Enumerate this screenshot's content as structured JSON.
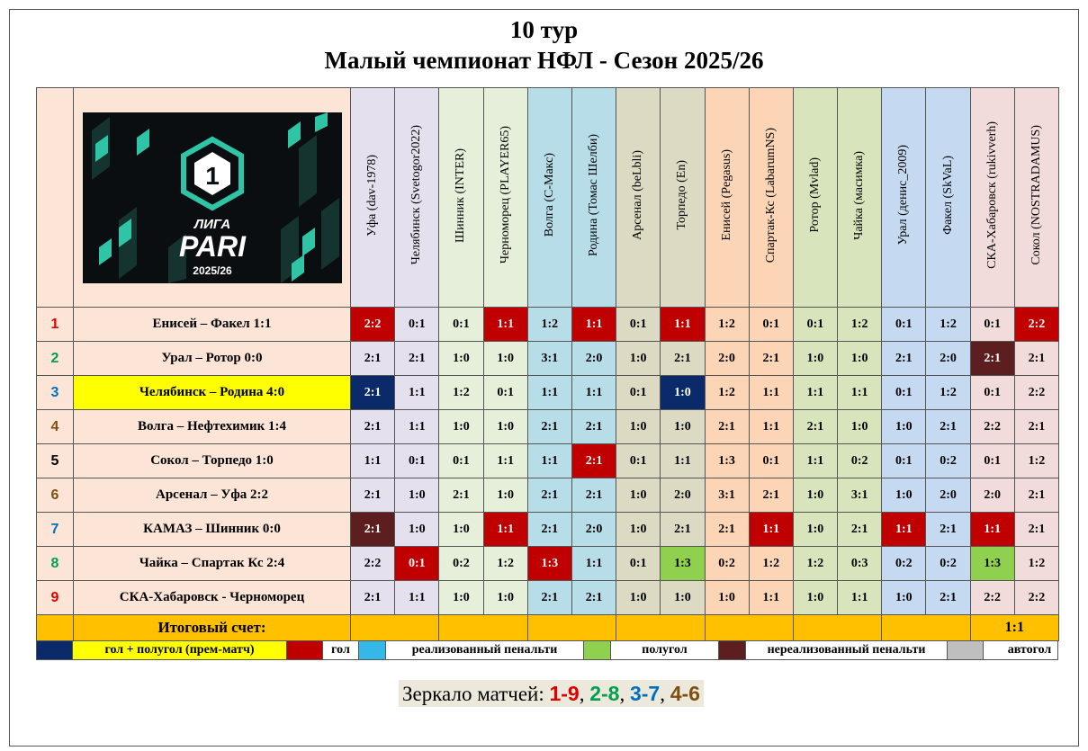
{
  "title": {
    "line1": "10 тур",
    "line2": "Малый чемпионат НФЛ - Сезон 2025/26"
  },
  "logo": {
    "line1": "ЛИГА",
    "line2": "PARI",
    "line3": "2025/26",
    "badge": "1"
  },
  "colors": {
    "num_red": "#e00000",
    "num_green": "#00a050",
    "num_blue": "#0070c0",
    "num_brown": "#7f4f10",
    "premium": "#0a2a6a",
    "goal": "#c00000",
    "penalty": "#33b8e8",
    "halfgoal": "#8fd14f",
    "missed_penalty": "#5c1e1e",
    "own_goal": "#bfbfbf",
    "total_row": "#ffc000",
    "highlight_match": "#ffff00"
  },
  "players": [
    {
      "name": "Уфа (dav-1978)",
      "bg": "#e5e0ee"
    },
    {
      "name": "Челябинск (Svetogor2022)",
      "bg": "#e5e0ee"
    },
    {
      "name": "Шинник (INTER)",
      "bg": "#e6efd9"
    },
    {
      "name": "Черноморец (PLAYER65)",
      "bg": "#e6efd9"
    },
    {
      "name": "Волга (С-Макс)",
      "bg": "#b7dde8"
    },
    {
      "name": "Родина (Томас Шелби)",
      "bg": "#b7dde8"
    },
    {
      "name": "Арсенал (beLbli)",
      "bg": "#dddac4"
    },
    {
      "name": "Торпедо (En)",
      "bg": "#dddac4"
    },
    {
      "name": "Енисей (Pegasus)",
      "bg": "#fbd5b5"
    },
    {
      "name": "Спартак-Кс (LabarumNS)",
      "bg": "#fbd5b5"
    },
    {
      "name": "Ротор (Mvlad)",
      "bg": "#d8e4bc"
    },
    {
      "name": "Чайка (масимка)",
      "bg": "#d8e4bc"
    },
    {
      "name": "Урал (денис_2009)",
      "bg": "#c5d9f1"
    },
    {
      "name": "Факел (SkVaL)",
      "bg": "#c5d9f1"
    },
    {
      "name": "СКА-Хабаровск (rukivverh)",
      "bg": "#f2dcdb"
    },
    {
      "name": "Сокол (NOSTRADAMUS)",
      "bg": "#f2dcdb"
    }
  ],
  "matches": [
    {
      "num": "1",
      "num_color": "red",
      "title": "Енисей – Факел  1:1",
      "highlight": false,
      "cells": [
        [
          "2:2",
          "goal"
        ],
        [
          "0:1",
          ""
        ],
        [
          "0:1",
          ""
        ],
        [
          "1:1",
          "goal"
        ],
        [
          "1:2",
          ""
        ],
        [
          "1:1",
          "goal"
        ],
        [
          "0:1",
          ""
        ],
        [
          "1:1",
          "goal"
        ],
        [
          "1:2",
          ""
        ],
        [
          "0:1",
          ""
        ],
        [
          "0:1",
          ""
        ],
        [
          "1:2",
          ""
        ],
        [
          "0:1",
          ""
        ],
        [
          "1:2",
          ""
        ],
        [
          "0:1",
          ""
        ],
        [
          "2:2",
          "goal"
        ]
      ]
    },
    {
      "num": "2",
      "num_color": "green",
      "title": "Урал – Ротор  0:0",
      "highlight": false,
      "cells": [
        [
          "2:1",
          ""
        ],
        [
          "2:1",
          ""
        ],
        [
          "1:0",
          ""
        ],
        [
          "1:0",
          ""
        ],
        [
          "3:1",
          ""
        ],
        [
          "2:0",
          ""
        ],
        [
          "1:0",
          ""
        ],
        [
          "2:1",
          ""
        ],
        [
          "2:0",
          ""
        ],
        [
          "2:1",
          ""
        ],
        [
          "1:0",
          ""
        ],
        [
          "1:0",
          ""
        ],
        [
          "2:1",
          ""
        ],
        [
          "2:0",
          ""
        ],
        [
          "2:1",
          "missed_penalty"
        ],
        [
          "2:1",
          ""
        ]
      ]
    },
    {
      "num": "3",
      "num_color": "blue",
      "title": "Челябинск – Родина  4:0",
      "highlight": true,
      "cells": [
        [
          "2:1",
          "premium"
        ],
        [
          "1:1",
          ""
        ],
        [
          "1:2",
          ""
        ],
        [
          "0:1",
          ""
        ],
        [
          "1:1",
          ""
        ],
        [
          "1:1",
          ""
        ],
        [
          "0:1",
          ""
        ],
        [
          "1:0",
          "premium"
        ],
        [
          "1:2",
          ""
        ],
        [
          "1:1",
          ""
        ],
        [
          "1:1",
          ""
        ],
        [
          "1:1",
          ""
        ],
        [
          "0:1",
          ""
        ],
        [
          "1:2",
          ""
        ],
        [
          "0:1",
          ""
        ],
        [
          "2:2",
          ""
        ]
      ]
    },
    {
      "num": "4",
      "num_color": "brown",
      "title": "Волга – Нефтехимик  1:4",
      "highlight": false,
      "cells": [
        [
          "2:1",
          ""
        ],
        [
          "1:1",
          ""
        ],
        [
          "1:0",
          ""
        ],
        [
          "1:0",
          ""
        ],
        [
          "2:1",
          ""
        ],
        [
          "2:1",
          ""
        ],
        [
          "1:0",
          ""
        ],
        [
          "1:0",
          ""
        ],
        [
          "2:1",
          ""
        ],
        [
          "1:1",
          ""
        ],
        [
          "2:1",
          ""
        ],
        [
          "1:0",
          ""
        ],
        [
          "1:0",
          ""
        ],
        [
          "2:1",
          ""
        ],
        [
          "2:2",
          ""
        ],
        [
          "2:1",
          ""
        ]
      ]
    },
    {
      "num": "5",
      "num_color": "black",
      "title": "Сокол – Торпедо  1:0",
      "highlight": false,
      "cells": [
        [
          "1:1",
          ""
        ],
        [
          "0:1",
          ""
        ],
        [
          "0:1",
          ""
        ],
        [
          "1:1",
          ""
        ],
        [
          "1:1",
          ""
        ],
        [
          "2:1",
          "goal"
        ],
        [
          "0:1",
          ""
        ],
        [
          "1:1",
          ""
        ],
        [
          "1:3",
          ""
        ],
        [
          "0:1",
          ""
        ],
        [
          "1:1",
          ""
        ],
        [
          "0:2",
          ""
        ],
        [
          "0:1",
          ""
        ],
        [
          "0:2",
          ""
        ],
        [
          "0:1",
          ""
        ],
        [
          "1:2",
          ""
        ]
      ]
    },
    {
      "num": "6",
      "num_color": "brown",
      "title": "Арсенал – Уфа  2:2",
      "highlight": false,
      "cells": [
        [
          "2:1",
          ""
        ],
        [
          "1:0",
          ""
        ],
        [
          "2:1",
          ""
        ],
        [
          "1:0",
          ""
        ],
        [
          "2:1",
          ""
        ],
        [
          "2:1",
          ""
        ],
        [
          "1:0",
          ""
        ],
        [
          "2:0",
          ""
        ],
        [
          "3:1",
          ""
        ],
        [
          "2:1",
          ""
        ],
        [
          "1:0",
          ""
        ],
        [
          "3:1",
          ""
        ],
        [
          "1:0",
          ""
        ],
        [
          "2:0",
          ""
        ],
        [
          "2:0",
          ""
        ],
        [
          "2:1",
          ""
        ]
      ]
    },
    {
      "num": "7",
      "num_color": "blue",
      "title": "КАМАЗ – Шинник  0:0",
      "highlight": false,
      "cells": [
        [
          "2:1",
          "missed_penalty"
        ],
        [
          "1:0",
          ""
        ],
        [
          "1:0",
          ""
        ],
        [
          "1:1",
          "goal"
        ],
        [
          "2:1",
          ""
        ],
        [
          "2:0",
          ""
        ],
        [
          "1:0",
          ""
        ],
        [
          "2:1",
          ""
        ],
        [
          "2:1",
          ""
        ],
        [
          "1:1",
          "goal"
        ],
        [
          "1:0",
          ""
        ],
        [
          "2:1",
          ""
        ],
        [
          "1:1",
          "goal"
        ],
        [
          "2:1",
          ""
        ],
        [
          "1:1",
          "goal"
        ],
        [
          "2:1",
          ""
        ]
      ]
    },
    {
      "num": "8",
      "num_color": "green",
      "title": "Чайка – Спартак Кс  2:4",
      "highlight": false,
      "cells": [
        [
          "2:2",
          ""
        ],
        [
          "0:1",
          "goal"
        ],
        [
          "0:2",
          ""
        ],
        [
          "1:2",
          ""
        ],
        [
          "1:3",
          "goal"
        ],
        [
          "1:1",
          ""
        ],
        [
          "0:1",
          ""
        ],
        [
          "1:3",
          "halfgoal"
        ],
        [
          "0:2",
          ""
        ],
        [
          "1:2",
          ""
        ],
        [
          "1:2",
          ""
        ],
        [
          "0:3",
          ""
        ],
        [
          "0:2",
          ""
        ],
        [
          "0:2",
          ""
        ],
        [
          "1:3",
          "halfgoal"
        ],
        [
          "1:2",
          ""
        ]
      ]
    },
    {
      "num": "9",
      "num_color": "red",
      "title": "СКА-Хабаровск - Черноморец",
      "highlight": false,
      "cells": [
        [
          "2:1",
          ""
        ],
        [
          "1:1",
          ""
        ],
        [
          "1:0",
          ""
        ],
        [
          "1:0",
          ""
        ],
        [
          "2:1",
          ""
        ],
        [
          "2:1",
          ""
        ],
        [
          "1:0",
          ""
        ],
        [
          "1:0",
          ""
        ],
        [
          "1:0",
          ""
        ],
        [
          "1:1",
          ""
        ],
        [
          "1:0",
          ""
        ],
        [
          "1:1",
          ""
        ],
        [
          "1:0",
          ""
        ],
        [
          "2:1",
          ""
        ],
        [
          "2:2",
          ""
        ],
        [
          "2:2",
          ""
        ]
      ]
    }
  ],
  "total": {
    "label": "Итоговый счет:",
    "score": "1:1"
  },
  "legend": {
    "premium": "гол + полугол  (прем-матч)",
    "goal": "гол",
    "penalty": "реализованный  пенальти",
    "halfgoal": "полугол",
    "missed_penalty": "нереализованный  пенальти",
    "own_goal": "автогол"
  },
  "mirror": {
    "label": "Зеркало матчей:",
    "pairs": [
      "1-9",
      "2-8",
      "3-7",
      "4-6"
    ]
  }
}
